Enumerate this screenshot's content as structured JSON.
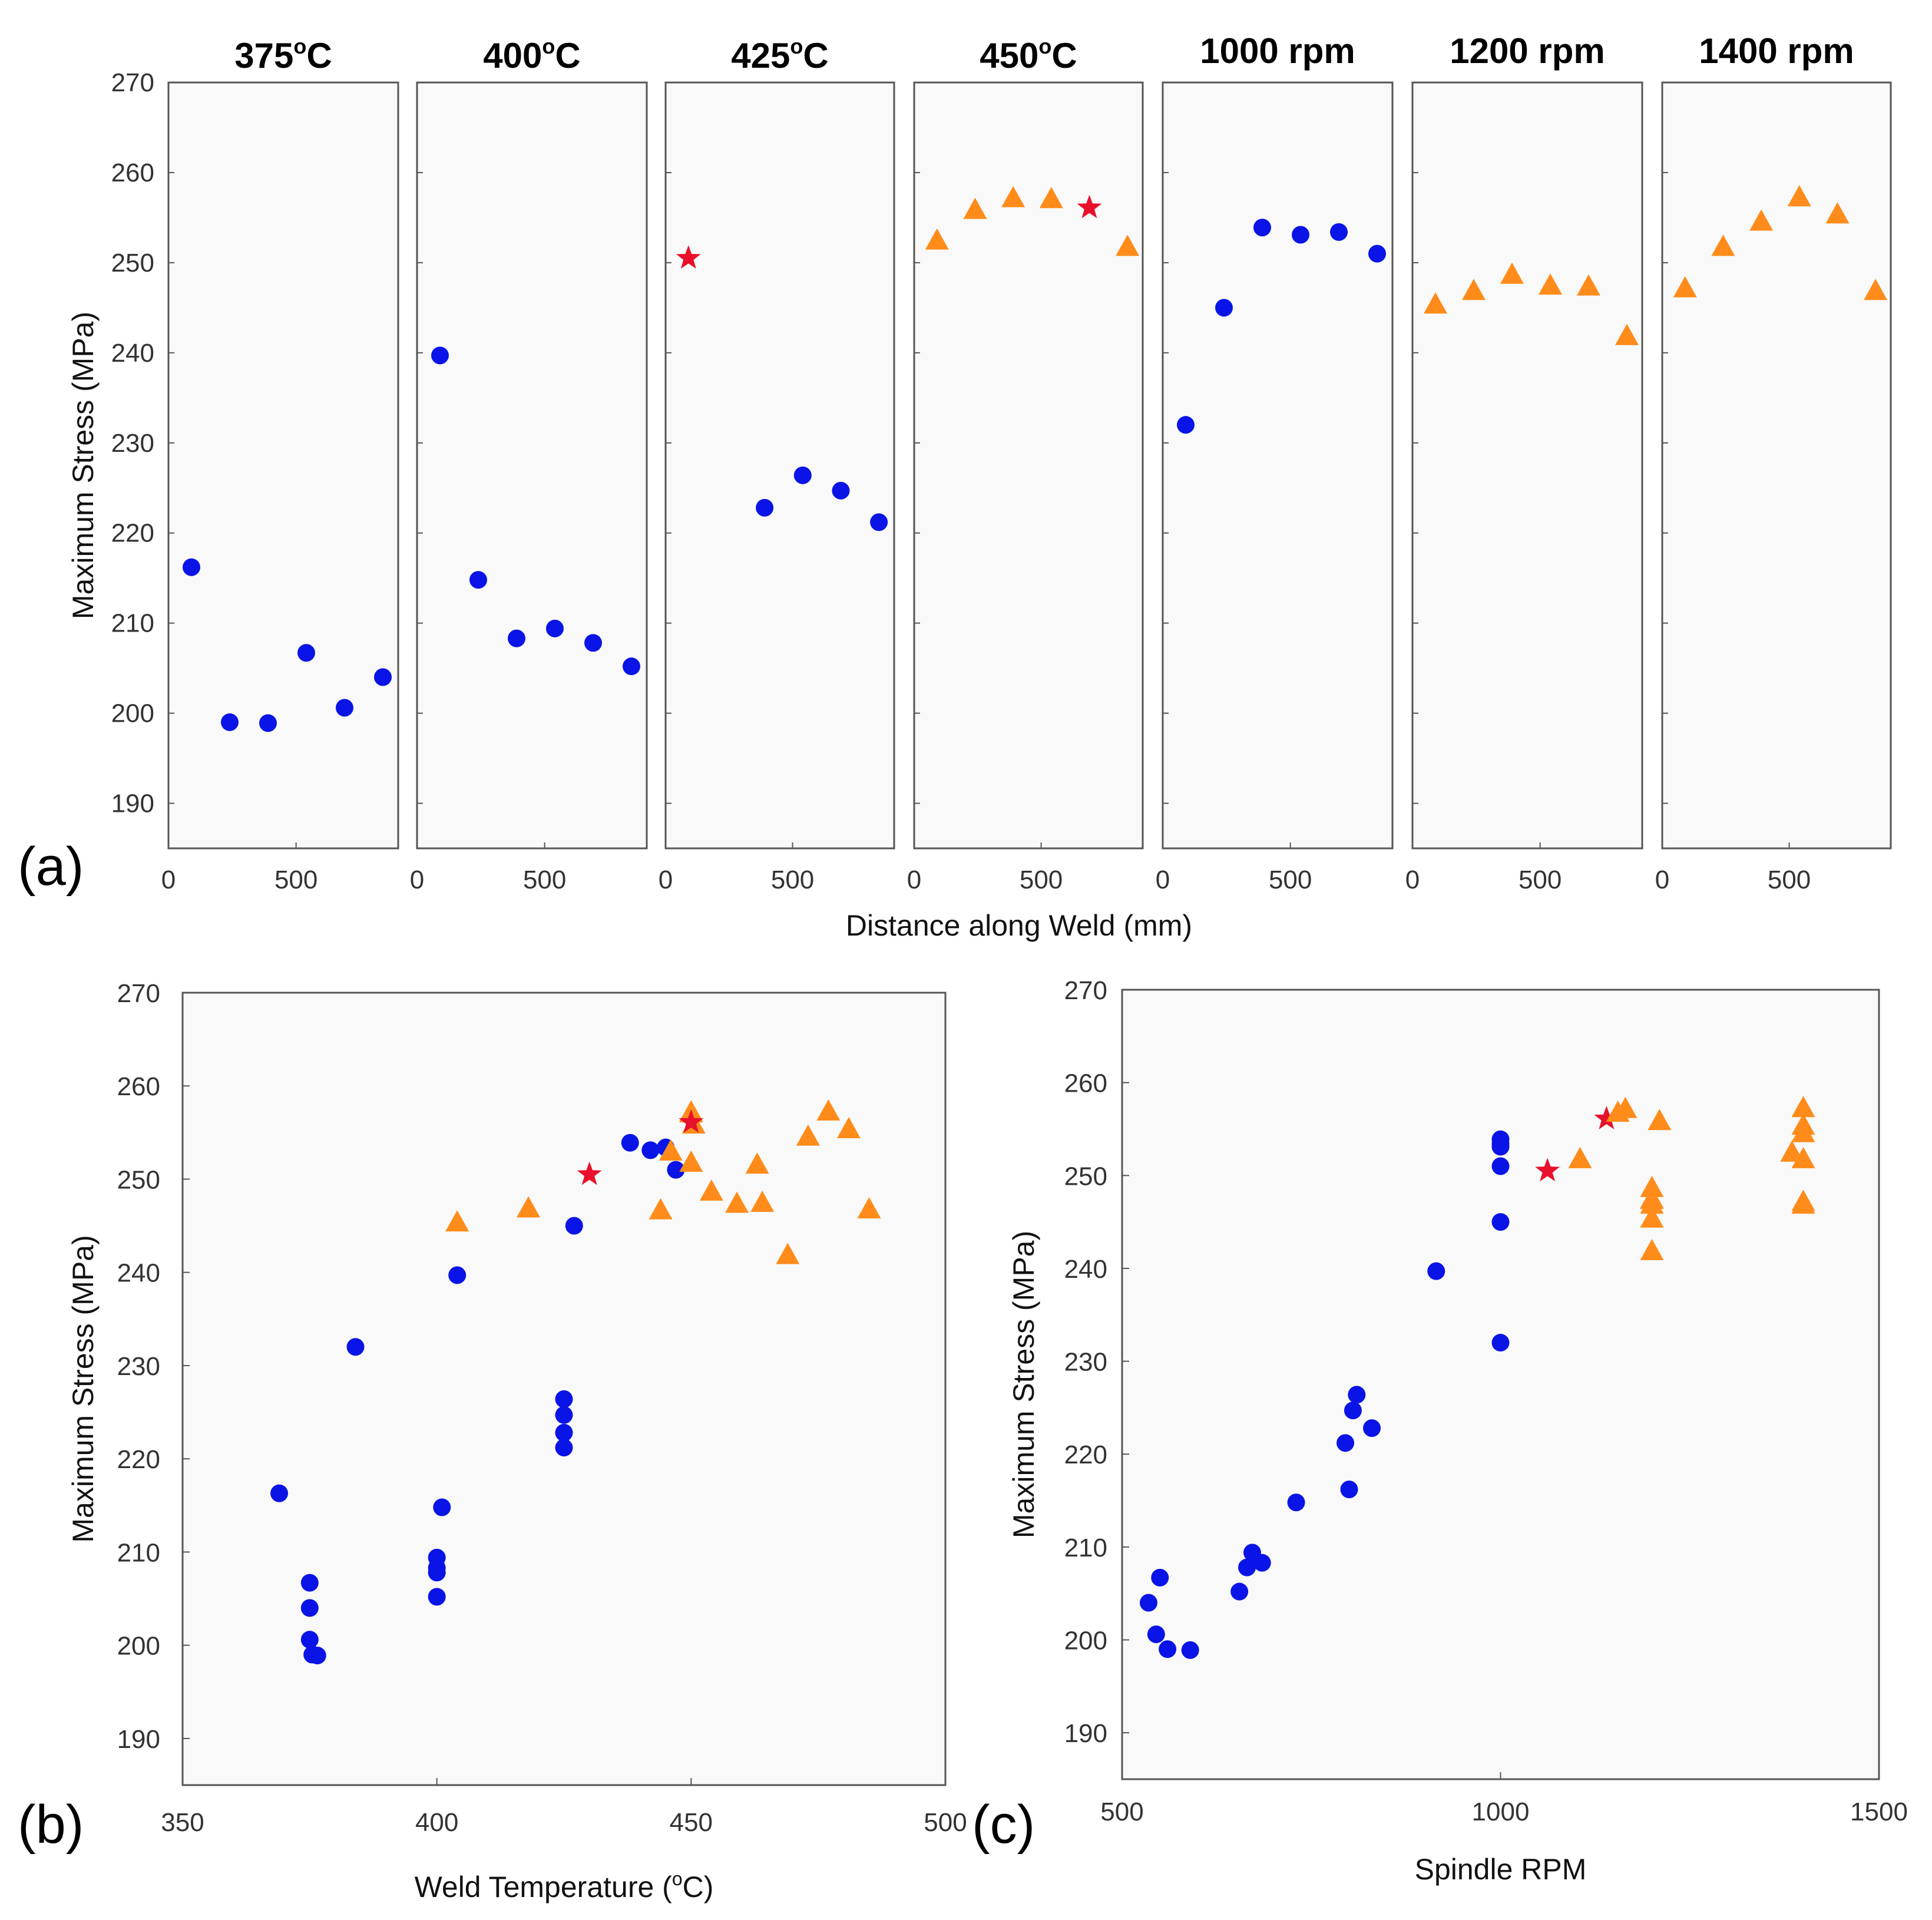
{
  "figure": {
    "panel_labels": [
      "(a)",
      "(b)",
      "(c)"
    ],
    "colors": {
      "circle": "#0a14e6",
      "triangle": "#ff8c1a",
      "star": "#e8102a",
      "plot_bg": "#f9f9f9",
      "axis": "#555555"
    }
  },
  "chart_data": [
    {
      "type": "scatter",
      "panel": "(a)",
      "title": "",
      "xlabel": "Distance along Weld (mm)",
      "ylabel": "Maximum Stress (MPa)",
      "ylim": [
        185,
        270
      ],
      "yticks": [
        190,
        200,
        210,
        220,
        230,
        240,
        250,
        260,
        270
      ],
      "xlim": [
        0,
        900
      ],
      "xticks": [
        0,
        500
      ],
      "subplots": [
        {
          "title": "375°C",
          "title_base": "375",
          "title_unit": "C",
          "points": [
            {
              "x": 90,
              "y": 216.2,
              "m": "circle"
            },
            {
              "x": 240,
              "y": 199,
              "m": "circle"
            },
            {
              "x": 390,
              "y": 198.9,
              "m": "circle"
            },
            {
              "x": 540,
              "y": 206.7,
              "m": "circle"
            },
            {
              "x": 690,
              "y": 200.6,
              "m": "circle"
            },
            {
              "x": 840,
              "y": 204,
              "m": "circle"
            }
          ]
        },
        {
          "title": "400°C",
          "title_base": "400",
          "title_unit": "C",
          "points": [
            {
              "x": 90,
              "y": 239.7,
              "m": "circle"
            },
            {
              "x": 240,
              "y": 214.8,
              "m": "circle"
            },
            {
              "x": 390,
              "y": 208.3,
              "m": "circle"
            },
            {
              "x": 540,
              "y": 209.4,
              "m": "circle"
            },
            {
              "x": 690,
              "y": 207.8,
              "m": "circle"
            },
            {
              "x": 840,
              "y": 205.2,
              "m": "circle"
            }
          ]
        },
        {
          "title": "425°C",
          "title_base": "425",
          "title_unit": "C",
          "points": [
            {
              "x": 90,
              "y": 250.5,
              "m": "star"
            },
            {
              "x": 390,
              "y": 222.8,
              "m": "circle"
            },
            {
              "x": 540,
              "y": 226.4,
              "m": "circle"
            },
            {
              "x": 690,
              "y": 224.7,
              "m": "circle"
            },
            {
              "x": 840,
              "y": 221.2,
              "m": "circle"
            }
          ]
        },
        {
          "title": "450°C",
          "title_base": "450",
          "title_unit": "C",
          "points": [
            {
              "x": 90,
              "y": 252.5,
              "m": "triangle"
            },
            {
              "x": 240,
              "y": 255.9,
              "m": "triangle"
            },
            {
              "x": 390,
              "y": 257.2,
              "m": "triangle"
            },
            {
              "x": 540,
              "y": 257.1,
              "m": "triangle"
            },
            {
              "x": 690,
              "y": 256.1,
              "m": "star"
            },
            {
              "x": 840,
              "y": 251.8,
              "m": "triangle"
            }
          ]
        },
        {
          "title": "1000 rpm",
          "points": [
            {
              "x": 90,
              "y": 232,
              "m": "circle"
            },
            {
              "x": 240,
              "y": 245,
              "m": "circle"
            },
            {
              "x": 390,
              "y": 253.9,
              "m": "circle"
            },
            {
              "x": 540,
              "y": 253.1,
              "m": "circle"
            },
            {
              "x": 690,
              "y": 253.4,
              "m": "circle"
            },
            {
              "x": 840,
              "y": 251,
              "m": "circle"
            }
          ]
        },
        {
          "title": "1200 rpm",
          "points": [
            {
              "x": 90,
              "y": 245.4,
              "m": "triangle"
            },
            {
              "x": 240,
              "y": 246.9,
              "m": "triangle"
            },
            {
              "x": 390,
              "y": 248.7,
              "m": "triangle"
            },
            {
              "x": 540,
              "y": 247.5,
              "m": "triangle"
            },
            {
              "x": 690,
              "y": 247.4,
              "m": "triangle"
            },
            {
              "x": 840,
              "y": 241.9,
              "m": "triangle"
            }
          ]
        },
        {
          "title": "1400 rpm",
          "points": [
            {
              "x": 90,
              "y": 247.2,
              "m": "triangle"
            },
            {
              "x": 240,
              "y": 251.8,
              "m": "triangle"
            },
            {
              "x": 390,
              "y": 254.6,
              "m": "triangle"
            },
            {
              "x": 540,
              "y": 257.3,
              "m": "triangle"
            },
            {
              "x": 690,
              "y": 255.4,
              "m": "triangle"
            },
            {
              "x": 840,
              "y": 246.9,
              "m": "triangle"
            }
          ]
        }
      ]
    },
    {
      "type": "scatter",
      "panel": "(b)",
      "title": "",
      "xlabel": "Weld Temperature (°C)",
      "xlabel_prefix": "Weld Temperature (",
      "xlabel_unit": "C)",
      "ylabel": "Maximum Stress (MPa)",
      "xlim": [
        350,
        500
      ],
      "xticks": [
        350,
        400,
        450,
        500
      ],
      "ylim": [
        185,
        270
      ],
      "yticks": [
        190,
        200,
        210,
        220,
        230,
        240,
        250,
        260,
        270
      ],
      "points": [
        {
          "x": 369,
          "y": 216.3,
          "m": "circle"
        },
        {
          "x": 375,
          "y": 206.7,
          "m": "circle"
        },
        {
          "x": 375,
          "y": 204,
          "m": "circle"
        },
        {
          "x": 375,
          "y": 200.6,
          "m": "circle"
        },
        {
          "x": 375.5,
          "y": 199,
          "m": "circle"
        },
        {
          "x": 376.5,
          "y": 198.9,
          "m": "circle"
        },
        {
          "x": 384,
          "y": 232,
          "m": "circle"
        },
        {
          "x": 400,
          "y": 209.4,
          "m": "circle"
        },
        {
          "x": 400,
          "y": 208.3,
          "m": "circle"
        },
        {
          "x": 400,
          "y": 207.8,
          "m": "circle"
        },
        {
          "x": 400,
          "y": 205.2,
          "m": "circle"
        },
        {
          "x": 401,
          "y": 214.8,
          "m": "circle"
        },
        {
          "x": 404,
          "y": 239.7,
          "m": "circle"
        },
        {
          "x": 404,
          "y": 245.4,
          "m": "triangle"
        },
        {
          "x": 418,
          "y": 246.9,
          "m": "triangle"
        },
        {
          "x": 425,
          "y": 226.4,
          "m": "circle"
        },
        {
          "x": 425,
          "y": 224.7,
          "m": "circle"
        },
        {
          "x": 425,
          "y": 222.8,
          "m": "circle"
        },
        {
          "x": 425,
          "y": 221.2,
          "m": "circle"
        },
        {
          "x": 427,
          "y": 245,
          "m": "circle"
        },
        {
          "x": 430,
          "y": 250.5,
          "m": "star"
        },
        {
          "x": 438,
          "y": 253.9,
          "m": "circle"
        },
        {
          "x": 442,
          "y": 253.1,
          "m": "circle"
        },
        {
          "x": 445,
          "y": 253.4,
          "m": "circle"
        },
        {
          "x": 447,
          "y": 251,
          "m": "circle"
        },
        {
          "x": 444,
          "y": 246.7,
          "m": "triangle"
        },
        {
          "x": 446,
          "y": 253,
          "m": "triangle"
        },
        {
          "x": 450,
          "y": 257.2,
          "m": "triangle"
        },
        {
          "x": 450,
          "y": 257.1,
          "m": "triangle"
        },
        {
          "x": 450.5,
          "y": 255.9,
          "m": "triangle"
        },
        {
          "x": 450,
          "y": 251.8,
          "m": "triangle"
        },
        {
          "x": 450,
          "y": 256.1,
          "m": "star"
        },
        {
          "x": 454,
          "y": 248.7,
          "m": "triangle"
        },
        {
          "x": 459,
          "y": 247.4,
          "m": "triangle"
        },
        {
          "x": 463,
          "y": 251.6,
          "m": "triangle"
        },
        {
          "x": 464,
          "y": 247.5,
          "m": "triangle"
        },
        {
          "x": 469,
          "y": 241.9,
          "m": "triangle"
        },
        {
          "x": 473,
          "y": 254.6,
          "m": "triangle"
        },
        {
          "x": 477,
          "y": 257.3,
          "m": "triangle"
        },
        {
          "x": 481,
          "y": 255.4,
          "m": "triangle"
        },
        {
          "x": 485,
          "y": 246.8,
          "m": "triangle"
        }
      ]
    },
    {
      "type": "scatter",
      "panel": "(c)",
      "title": "",
      "xlabel": "Spindle RPM",
      "ylabel": "Maximum Stress (MPa)",
      "xlim": [
        500,
        1500
      ],
      "xticks": [
        500,
        1000,
        1500
      ],
      "ylim": [
        185,
        270
      ],
      "yticks": [
        190,
        200,
        210,
        220,
        230,
        240,
        250,
        260,
        270
      ],
      "points": [
        {
          "x": 535,
          "y": 204,
          "m": "circle"
        },
        {
          "x": 545,
          "y": 200.6,
          "m": "circle"
        },
        {
          "x": 550,
          "y": 206.7,
          "m": "circle"
        },
        {
          "x": 560,
          "y": 199,
          "m": "circle"
        },
        {
          "x": 590,
          "y": 198.9,
          "m": "circle"
        },
        {
          "x": 655,
          "y": 205.2,
          "m": "circle"
        },
        {
          "x": 665,
          "y": 207.8,
          "m": "circle"
        },
        {
          "x": 672,
          "y": 209.4,
          "m": "circle"
        },
        {
          "x": 685,
          "y": 208.3,
          "m": "circle"
        },
        {
          "x": 730,
          "y": 214.8,
          "m": "circle"
        },
        {
          "x": 795,
          "y": 221.2,
          "m": "circle"
        },
        {
          "x": 800,
          "y": 216.2,
          "m": "circle"
        },
        {
          "x": 805,
          "y": 224.7,
          "m": "circle"
        },
        {
          "x": 810,
          "y": 226.4,
          "m": "circle"
        },
        {
          "x": 830,
          "y": 222.8,
          "m": "circle"
        },
        {
          "x": 915,
          "y": 239.7,
          "m": "circle"
        },
        {
          "x": 1000,
          "y": 232,
          "m": "circle"
        },
        {
          "x": 1000,
          "y": 245,
          "m": "circle"
        },
        {
          "x": 1000,
          "y": 251,
          "m": "circle"
        },
        {
          "x": 1000,
          "y": 253.1,
          "m": "circle"
        },
        {
          "x": 1000,
          "y": 253.4,
          "m": "circle"
        },
        {
          "x": 1000,
          "y": 253.9,
          "m": "circle"
        },
        {
          "x": 1062,
          "y": 250.5,
          "m": "star"
        },
        {
          "x": 1140,
          "y": 256.1,
          "m": "star"
        },
        {
          "x": 1105,
          "y": 251.8,
          "m": "triangle"
        },
        {
          "x": 1155,
          "y": 256.8,
          "m": "triangle"
        },
        {
          "x": 1165,
          "y": 257.2,
          "m": "triangle"
        },
        {
          "x": 1200,
          "y": 241.9,
          "m": "triangle"
        },
        {
          "x": 1200,
          "y": 245.4,
          "m": "triangle"
        },
        {
          "x": 1200,
          "y": 246.9,
          "m": "triangle"
        },
        {
          "x": 1200,
          "y": 247.4,
          "m": "triangle"
        },
        {
          "x": 1200,
          "y": 247.5,
          "m": "triangle"
        },
        {
          "x": 1200,
          "y": 248.7,
          "m": "triangle"
        },
        {
          "x": 1210,
          "y": 255.9,
          "m": "triangle"
        },
        {
          "x": 1385,
          "y": 252.5,
          "m": "triangle"
        },
        {
          "x": 1400,
          "y": 246.9,
          "m": "triangle"
        },
        {
          "x": 1400,
          "y": 247.2,
          "m": "triangle"
        },
        {
          "x": 1400,
          "y": 251.8,
          "m": "triangle"
        },
        {
          "x": 1400,
          "y": 254.6,
          "m": "triangle"
        },
        {
          "x": 1400,
          "y": 255.4,
          "m": "triangle"
        },
        {
          "x": 1400,
          "y": 257.3,
          "m": "triangle"
        }
      ]
    }
  ]
}
